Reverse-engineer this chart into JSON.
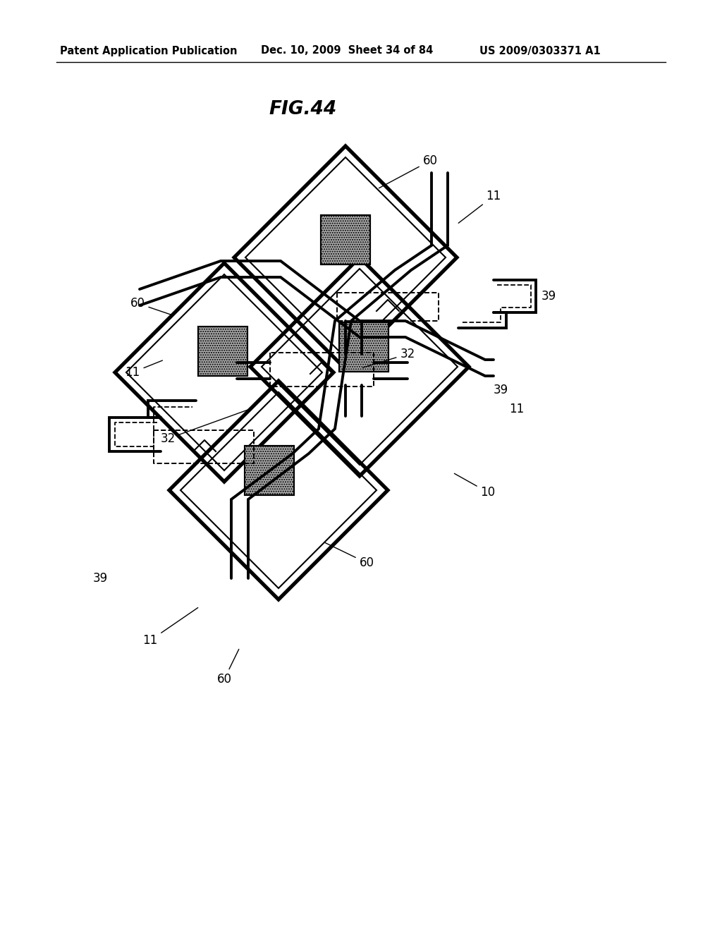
{
  "title": "FIG.44",
  "header_left": "Patent Application Publication",
  "header_mid": "Dec. 10, 2009  Sheet 34 of 84",
  "header_right": "US 2009/0303371 A1",
  "bg_color": "#ffffff",
  "line_color": "#000000",
  "gray_fill": "#b0b0b0"
}
